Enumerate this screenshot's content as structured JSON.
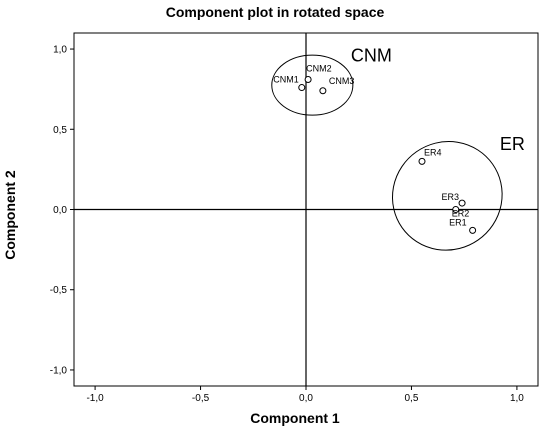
{
  "chart_data": {
    "type": "scatter",
    "title": "Component plot in rotated space",
    "xlabel": "Component 1",
    "ylabel": "Component 2",
    "xlim": [
      -1.0,
      1.0
    ],
    "ylim": [
      -1.0,
      1.0
    ],
    "x_ticks": [
      "-1,0",
      "-0,5",
      "0,0",
      "0,5",
      "1,0"
    ],
    "y_ticks": [
      "1,0",
      "0,5",
      "0,0",
      "-0,5",
      "-1,0"
    ],
    "grid": false,
    "reference_lines": {
      "x": 0,
      "y": 0
    },
    "points": [
      {
        "label": "CNM1",
        "x": -0.02,
        "y": 0.76
      },
      {
        "label": "CNM2",
        "x": 0.01,
        "y": 0.81
      },
      {
        "label": "CNM3",
        "x": 0.08,
        "y": 0.74
      },
      {
        "label": "ER4",
        "x": 0.55,
        "y": 0.3
      },
      {
        "label": "ER3",
        "x": 0.74,
        "y": 0.04
      },
      {
        "label": "ER2",
        "x": 0.71,
        "y": 0.0
      },
      {
        "label": "ER1",
        "x": 0.79,
        "y": -0.13
      }
    ],
    "groups": [
      {
        "label": "CNM",
        "members": [
          "CNM1",
          "CNM2",
          "CNM3"
        ]
      },
      {
        "label": "ER",
        "members": [
          "ER1",
          "ER2",
          "ER3",
          "ER4"
        ]
      }
    ]
  }
}
